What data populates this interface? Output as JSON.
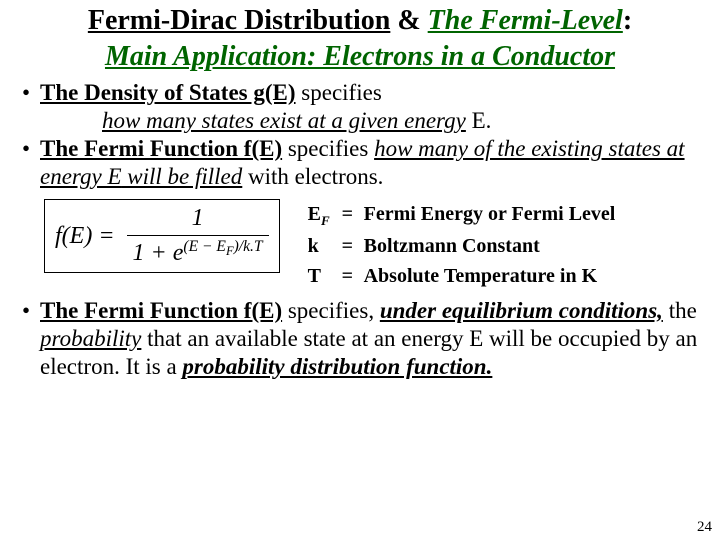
{
  "title": {
    "part1": "Fermi-Dirac Distribution",
    "amp": " & ",
    "part2": "The Fermi-Level",
    "colon": ":",
    "line2": "Main Application: Electrons in a Conductor"
  },
  "bullets": {
    "b1a": "The Density of States g(E)",
    "b1b": " specifies",
    "b1c": "how many states exist at a given energy",
    "b1d": " E.",
    "b2a": "The Fermi Function f(E)",
    "b2b": " specifies ",
    "b2c": "how many of the existing states at energy E",
    "b2d": "  will be filled",
    "b2e": " with electrons.",
    "b3a": "The Fermi Function f(E)",
    "b3b": " specifies, ",
    "b3c": "under equilibrium conditions,",
    "b3d": " the ",
    "b3e": "probability",
    "b3f": " that an available state at an energy E will be occupied by an electron. It is a ",
    "b3g": "probability distribution function."
  },
  "formula": {
    "lhs": "f(E)  =",
    "num": "1",
    "den_pre": "1 + e",
    "exp": "(E − E",
    "exp_sub": "F",
    "exp_post": ")/k.T"
  },
  "defs": {
    "r1sym": "E",
    "r1sub": "F",
    "r1eq": "=",
    "r1txt": "Fermi Energy or Fermi Level",
    "r2sym": "k",
    "r2eq": "=",
    "r2txt": "Boltzmann Constant",
    "r3sym": "T",
    "r3eq": "=",
    "r3txt": "Absolute Temperature in K"
  },
  "pagenum": "24"
}
